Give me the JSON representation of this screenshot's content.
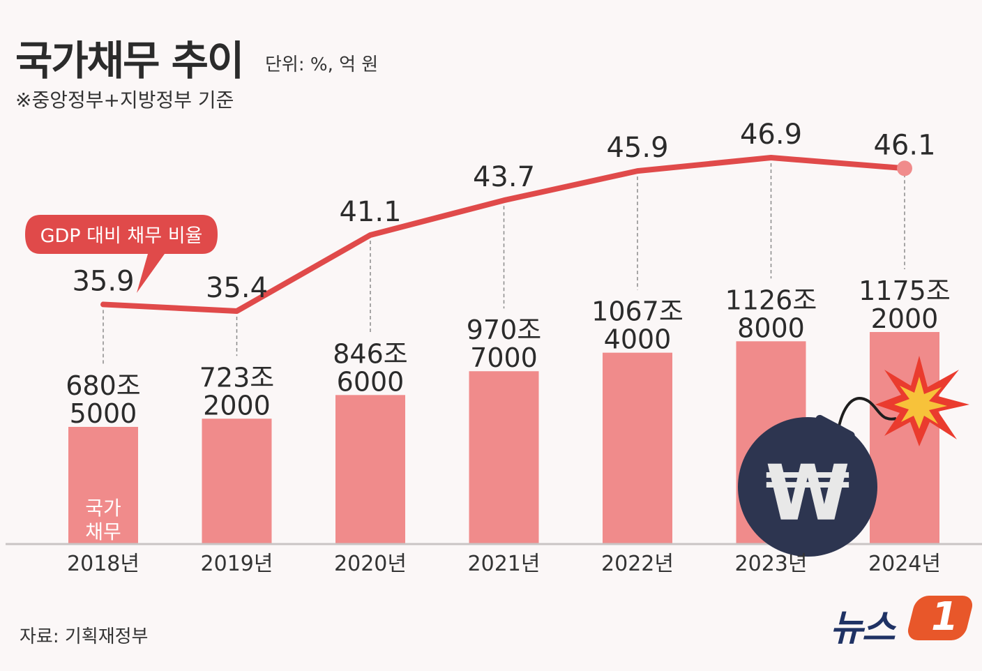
{
  "title": "국가채무 추이",
  "unit": "단위: %, 억 원",
  "note": "※중앙정부+지방정부 기준",
  "source": "자료: 기획재정부",
  "logo": {
    "text": "뉴스",
    "badge": "1"
  },
  "colors": {
    "bar": "#f08b8b",
    "line": "#e04a4a",
    "callout": "#e04a4a",
    "bomb": "#2d3550"
  },
  "chart_data": {
    "type": "bar",
    "categories": [
      "2018년",
      "2019년",
      "2020년",
      "2021년",
      "2022년",
      "2023년",
      "2024년"
    ],
    "series": [
      {
        "name": "국가채무",
        "type": "bar",
        "values": [
          6805000,
          7232000,
          8466000,
          9707000,
          10674000,
          11268000,
          11752000
        ],
        "labels": [
          [
            "680조",
            "5000"
          ],
          [
            "723조",
            "2000"
          ],
          [
            "846조",
            "6000"
          ],
          [
            "970조",
            "7000"
          ],
          [
            "1067조",
            "4000"
          ],
          [
            "1126조",
            "8000"
          ],
          [
            "1175조",
            "2000"
          ]
        ]
      },
      {
        "name": "GDP 대비 채무 비율",
        "type": "line",
        "values": [
          35.9,
          35.4,
          41.1,
          43.7,
          45.9,
          46.9,
          46.1
        ],
        "labels": [
          "35.9",
          "35.4",
          "41.1",
          "43.7",
          "45.9",
          "46.9",
          "46.1"
        ]
      }
    ],
    "bar_inside_label": [
      "국가",
      "채무"
    ],
    "callout": "GDP 대비 채무 비율",
    "bar_ylim": [
      0,
      12000000
    ],
    "line_ylim": [
      30,
      50
    ]
  }
}
